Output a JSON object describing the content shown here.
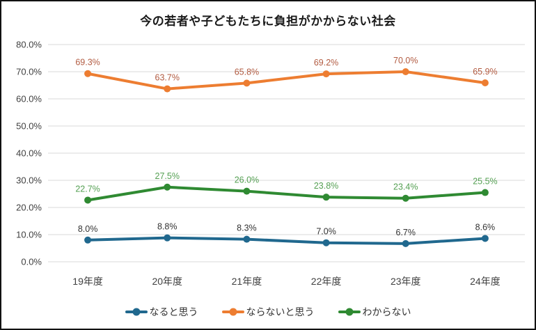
{
  "chart_data": {
    "type": "line",
    "title": "今の若者や子どもたちに負担がかからない社会",
    "categories": [
      "19年度",
      "20年度",
      "21年度",
      "22年度",
      "23年度",
      "24年度"
    ],
    "series": [
      {
        "name": "なると思う",
        "values": [
          8.0,
          8.8,
          8.3,
          7.0,
          6.7,
          8.6
        ],
        "labels": [
          "8.0%",
          "8.8%",
          "8.3%",
          "7.0%",
          "6.7%",
          "8.6%"
        ],
        "color": "#20688E",
        "label_color": "#333333"
      },
      {
        "name": "ならないと思う",
        "values": [
          69.3,
          63.7,
          65.8,
          69.2,
          70.0,
          65.9
        ],
        "labels": [
          "69.3%",
          "63.7%",
          "65.8%",
          "69.2%",
          "70.0%",
          "65.9%"
        ],
        "color": "#ED7D31",
        "label_color": "#B25B41"
      },
      {
        "name": "わからない",
        "values": [
          22.7,
          27.5,
          26.0,
          23.8,
          23.4,
          25.5
        ],
        "labels": [
          "22.7%",
          "27.5%",
          "26.0%",
          "23.8%",
          "23.4%",
          "25.5%"
        ],
        "color": "#2F8A32",
        "label_color": "#55A053"
      }
    ],
    "ylim": [
      0,
      80
    ],
    "ytick_step": 10,
    "ytick_labels": [
      "0.0%",
      "10.0%",
      "20.0%",
      "30.0%",
      "40.0%",
      "50.0%",
      "60.0%",
      "70.0%",
      "80.0%"
    ],
    "grid": true,
    "gridline_color": "#D9D9D9",
    "legend_position": "bottom"
  },
  "frame": {
    "border_color": "#111111",
    "background": "#ffffff"
  }
}
